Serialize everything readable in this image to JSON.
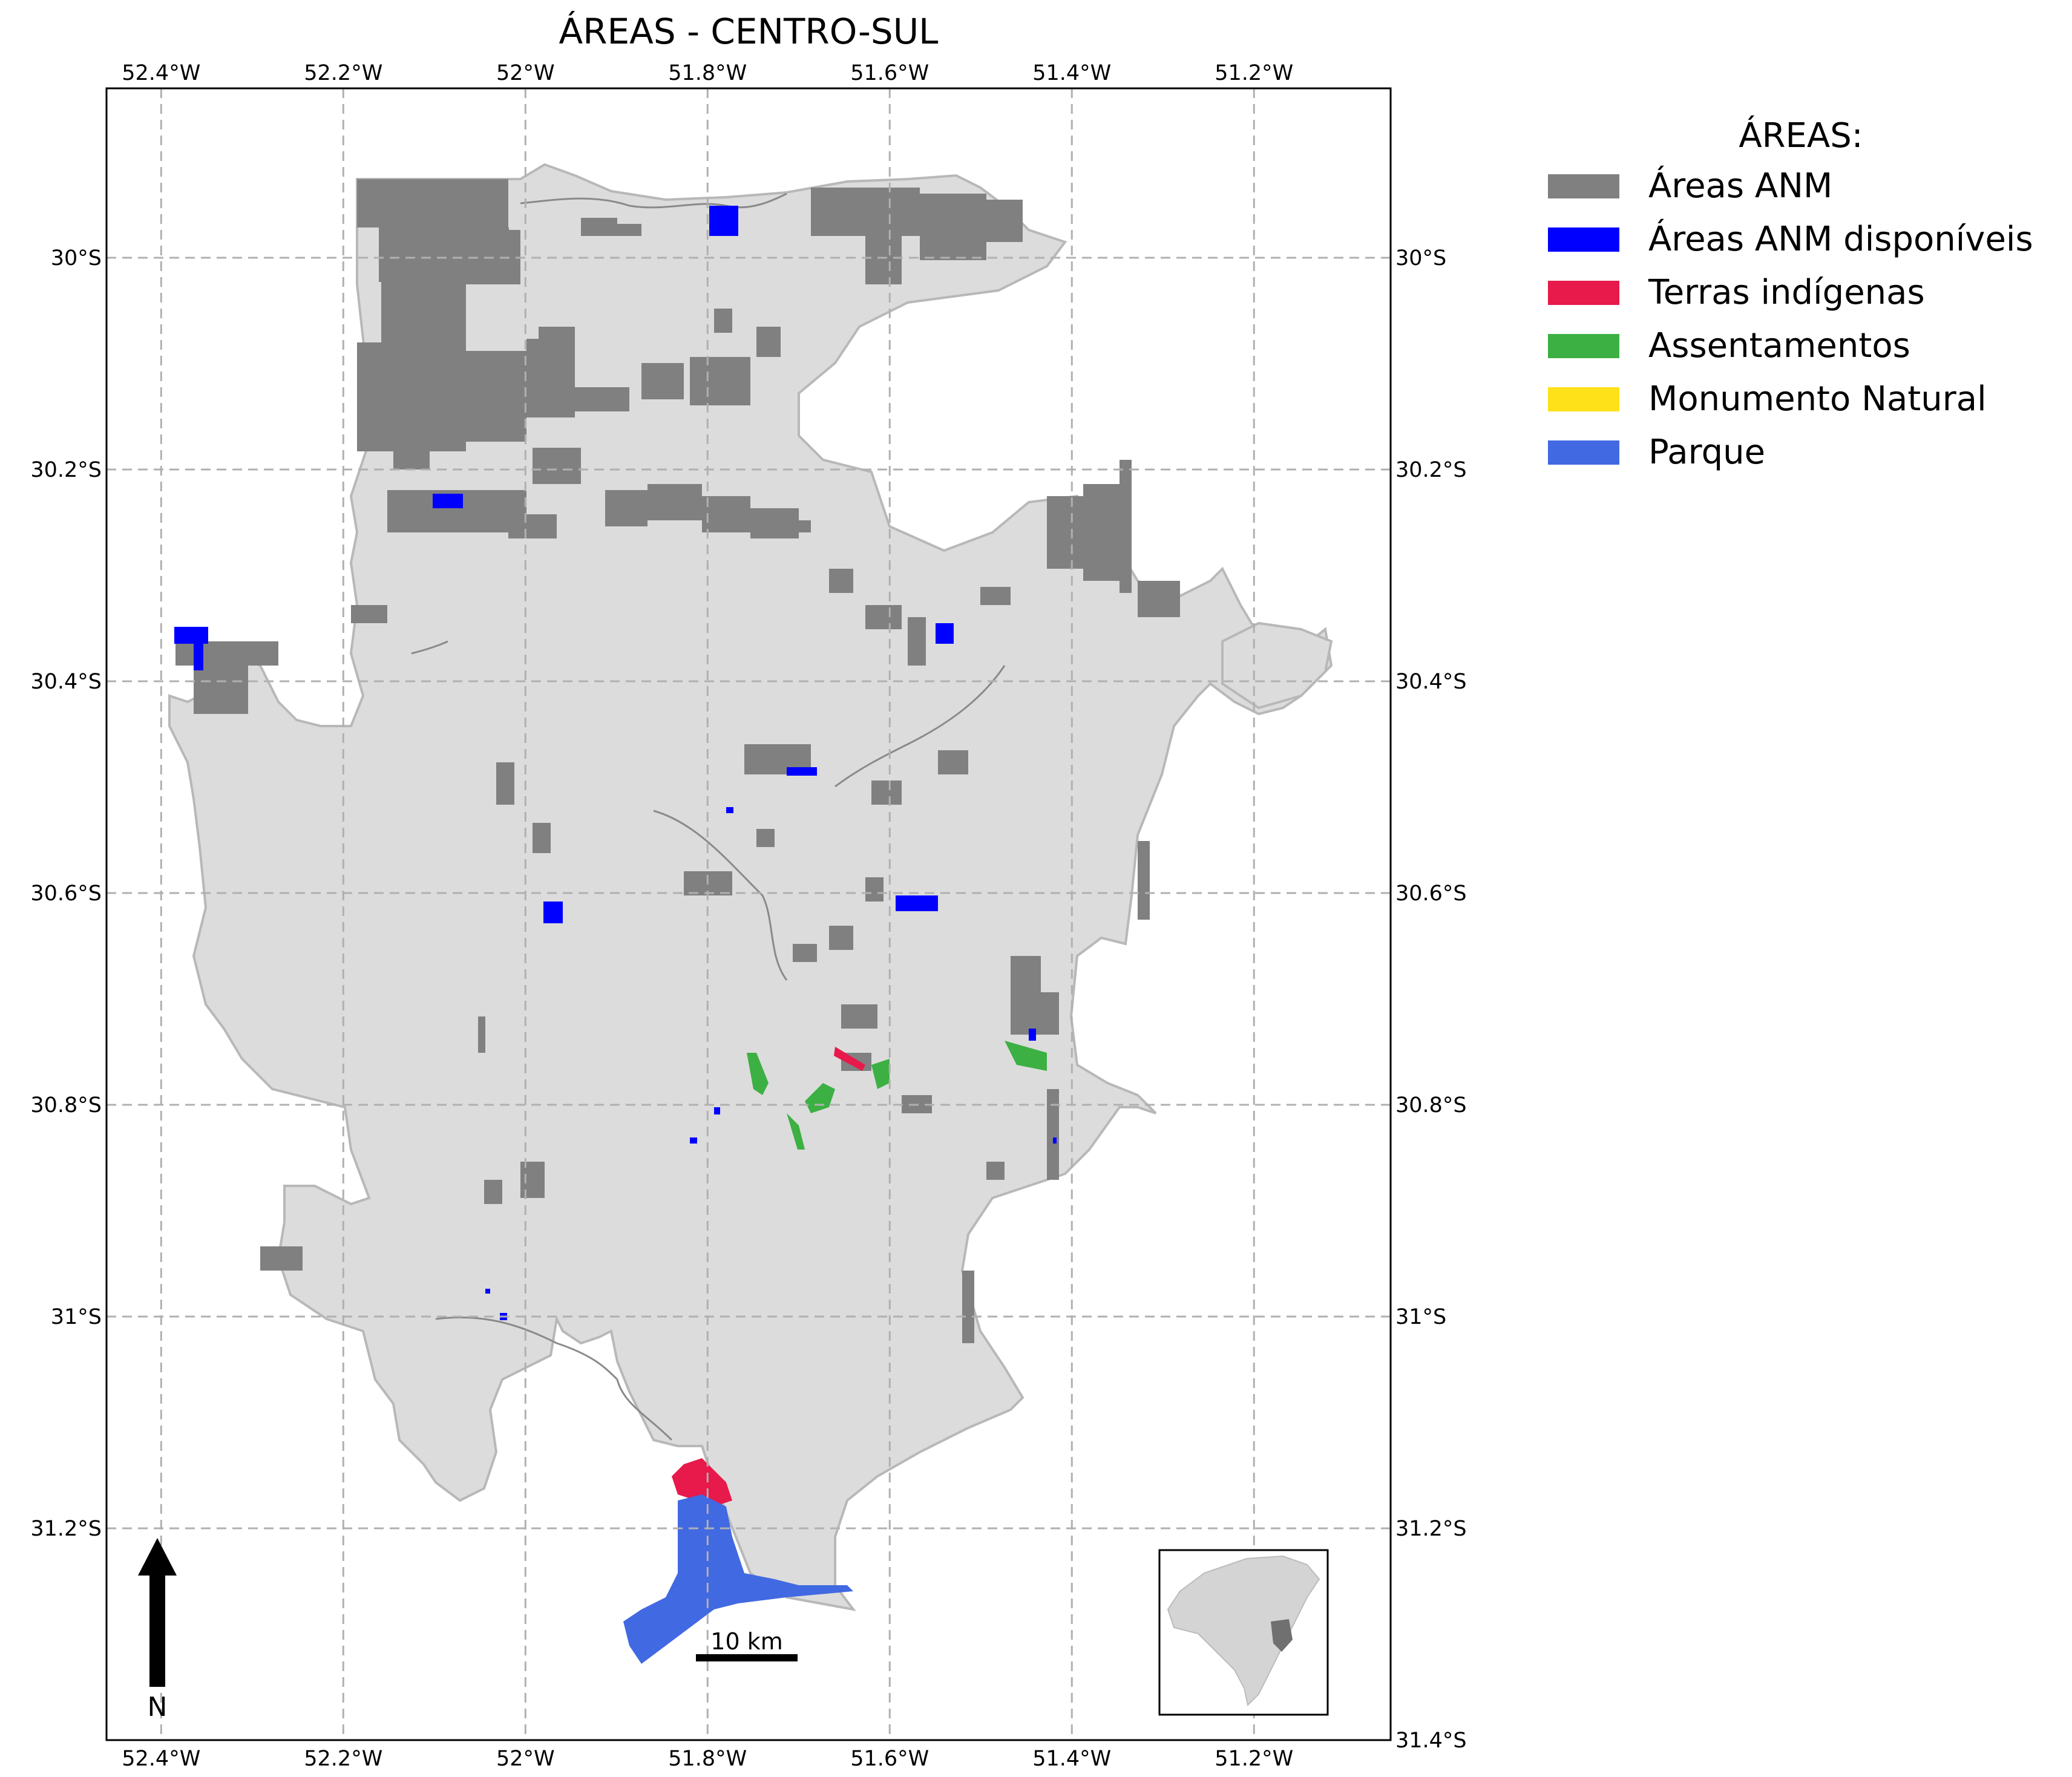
{
  "title": "ÁREAS - CENTRO-SUL",
  "map": {
    "lon_ticks": [
      {
        "value": -52.4,
        "label": "52.4°W"
      },
      {
        "value": -52.2,
        "label": "52.2°W"
      },
      {
        "value": -52.0,
        "label": "52°W"
      },
      {
        "value": -51.8,
        "label": "51.8°W"
      },
      {
        "value": -51.6,
        "label": "51.6°W"
      },
      {
        "value": -51.4,
        "label": "51.4°W"
      },
      {
        "value": -51.2,
        "label": "51.2°W"
      }
    ],
    "lat_ticks": [
      {
        "value": -30.0,
        "label": "30°S"
      },
      {
        "value": -30.2,
        "label": "30.2°S"
      },
      {
        "value": -30.4,
        "label": "30.4°S"
      },
      {
        "value": -30.6,
        "label": "30.6°S"
      },
      {
        "value": -30.8,
        "label": "30.8°S"
      },
      {
        "value": -31.0,
        "label": "31°S"
      },
      {
        "value": -31.2,
        "label": "31.2°S"
      },
      {
        "value": -31.4,
        "label": "31.4°S"
      }
    ],
    "extent": {
      "lon_min": -52.46,
      "lon_max": -51.05,
      "lat_min": -31.4,
      "lat_max": -29.84
    },
    "right_axis_lat_labels": [
      "30°S",
      "30.2°S",
      "30.4°S",
      "30.6°S",
      "30.8°S",
      "31°S",
      "31.2°S",
      "31.4°S"
    ],
    "grid": true,
    "region_fill": "#dcdcdc",
    "region_stroke": "#b8b8b8"
  },
  "legend": {
    "title": "ÁREAS:",
    "position": "upper-right-outside",
    "items": [
      {
        "label": "Áreas ANM",
        "color": "#808080"
      },
      {
        "label": "Áreas ANM disponíveis",
        "color": "#0000ff"
      },
      {
        "label": "Terras indígenas",
        "color": "#e8194b"
      },
      {
        "label": "Assentamentos",
        "color": "#3cb043"
      },
      {
        "label": "Monumento Natural",
        "color": "#ffe119"
      },
      {
        "label": "Parque",
        "color": "#4169e1"
      }
    ]
  },
  "scale_bar": {
    "label": "10 km"
  },
  "north_arrow": {
    "label": "N"
  },
  "inset": {
    "description_icon": "rio-grande-do-sul-locator-map-icon"
  }
}
